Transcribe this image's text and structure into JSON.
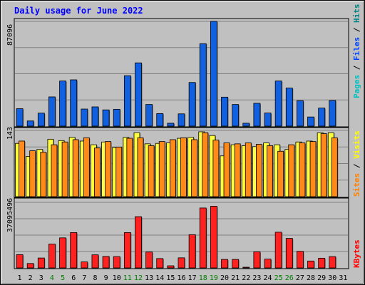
{
  "chart_data": {
    "type": "bar",
    "title": "Daily usage for June 2022",
    "days": [
      "1",
      "2",
      "3",
      "4",
      "5",
      "6",
      "7",
      "8",
      "9",
      "10",
      "11",
      "12",
      "13",
      "14",
      "15",
      "16",
      "17",
      "18",
      "19",
      "20",
      "21",
      "22",
      "23",
      "24",
      "25",
      "26",
      "27",
      "28",
      "29",
      "30",
      "31"
    ],
    "weekend_days": [
      "4",
      "5",
      "11",
      "12",
      "18",
      "19",
      "25",
      "26"
    ],
    "panels": [
      {
        "id": "hits-files-pages",
        "ytick_label": "87096",
        "ymax": 87096,
        "legend": [
          {
            "text": "Pages",
            "color": "#00c0c0"
          },
          {
            "text": " / ",
            "color": "#000000"
          },
          {
            "text": "Files",
            "color": "#0040ff"
          },
          {
            "text": " / ",
            "color": "#000000"
          },
          {
            "text": "Hits",
            "color": "#008080"
          }
        ],
        "series": [
          {
            "name": "Hits",
            "color": "#1060e0",
            "values": [
              14500,
              4300,
              10800,
              24300,
              37500,
              38500,
              14200,
              16000,
              13500,
              14000,
              41900,
              52600,
              18000,
              10400,
              2400,
              10200,
              36300,
              68500,
              87096,
              24100,
              18000,
              2400,
              19000,
              10900,
              37500,
              31700,
              21100,
              7600,
              15000,
              21300,
              0
            ]
          }
        ]
      },
      {
        "id": "visits-sites",
        "ytick_label": "143",
        "ymax": 143,
        "legend": [
          {
            "text": "Sites",
            "color": "#ff8000"
          },
          {
            "text": " / ",
            "color": "#000000"
          },
          {
            "text": "Visits",
            "color": "#ffff00"
          }
        ],
        "series": [
          {
            "name": "Visits",
            "color": "#ffff40",
            "values": [
              115,
              87,
              102,
              124,
              121,
              128,
              120,
              112,
              118,
              106,
              128,
              138,
              114,
              115,
              116,
              126,
              128,
              140,
              132,
              88,
              112,
              110,
              108,
              116,
              112,
              102,
              118,
              120,
              138,
              138,
              0
            ]
          },
          {
            "name": "Sites",
            "color": "#ff8a1a",
            "values": [
              120,
              99,
              96,
              112,
              118,
              123,
              127,
              105,
              119,
              107,
              126,
              127,
              110,
              119,
              123,
              127,
              123,
              138,
              122,
              116,
              114,
              116,
              113,
              110,
              98,
              112,
              116,
              119,
              136,
              127,
              0
            ]
          }
        ]
      },
      {
        "id": "kbytes",
        "ytick_label": "37095496",
        "ymax": 37095496,
        "legend": [
          {
            "text": "KBytes",
            "color": "#ff0000"
          }
        ],
        "series": [
          {
            "name": "KBytes",
            "color": "#ff2020",
            "values": [
              7500000,
              2500000,
              5600000,
              13500000,
              17000000,
              20000000,
              3400000,
              7400000,
              6500000,
              6400000,
              20000000,
              29000000,
              9000000,
              5300000,
              1200000,
              5700000,
              18800000,
              33900000,
              34900000,
              4800000,
              4800000,
              100000,
              9100000,
              5000000,
              20200000,
              16700000,
              9400000,
              3900000,
              5500000,
              6400000,
              0
            ]
          }
        ]
      }
    ]
  }
}
